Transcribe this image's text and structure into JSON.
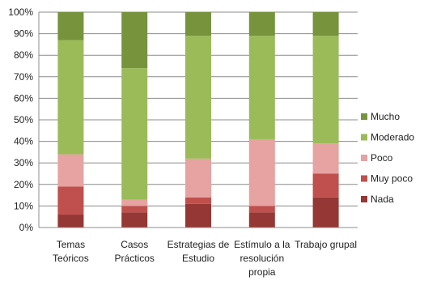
{
  "chart_data": {
    "type": "bar",
    "stacked": true,
    "percent": true,
    "title": "",
    "xlabel": "",
    "ylabel": "",
    "ylim": [
      0,
      100
    ],
    "yticks": [
      "0%",
      "10%",
      "20%",
      "30%",
      "40%",
      "50%",
      "60%",
      "70%",
      "80%",
      "90%",
      "100%"
    ],
    "grid": true,
    "legend": "right",
    "categories": [
      [
        "Temas",
        "Teóricos"
      ],
      [
        "Casos",
        "Prácticos"
      ],
      [
        "Estrategias de",
        "Estudio"
      ],
      [
        "Estímulo a la",
        "resolución",
        "propia"
      ],
      [
        "Trabajo grupal"
      ]
    ],
    "series": [
      {
        "name": "Nada",
        "color": "#953735",
        "values": [
          6,
          7,
          11,
          7,
          14
        ]
      },
      {
        "name": "Muy poco",
        "color": "#c0504d",
        "values": [
          13,
          3,
          3,
          3,
          11
        ]
      },
      {
        "name": "Poco",
        "color": "#e6a3a1",
        "values": [
          15,
          3,
          18,
          31,
          14
        ]
      },
      {
        "name": "Moderado",
        "color": "#9bbb59",
        "values": [
          53,
          61,
          57,
          48,
          50
        ]
      },
      {
        "name": "Mucho",
        "color": "#77933c",
        "values": [
          13,
          26,
          11,
          11,
          11
        ]
      }
    ]
  }
}
